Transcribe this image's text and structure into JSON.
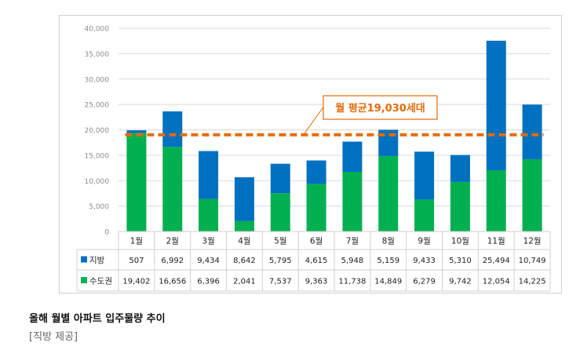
{
  "chart_data": {
    "type": "bar",
    "stacked": true,
    "categories": [
      "1월",
      "2월",
      "3월",
      "4월",
      "5월",
      "6월",
      "7월",
      "8월",
      "9월",
      "10월",
      "11월",
      "12월"
    ],
    "series": [
      {
        "name": "수도권",
        "color": "#00b050",
        "values": [
          19402,
          16656,
          6396,
          2041,
          7537,
          9363,
          11738,
          14849,
          6279,
          9742,
          12054,
          14225
        ],
        "labels": [
          "19,402",
          "16,656",
          "6,396",
          "2,041",
          "7,537",
          "9,363",
          "11,738",
          "14,849",
          "6,279",
          "9,742",
          "12,054",
          "14,225"
        ]
      },
      {
        "name": "지방",
        "color": "#0070c0",
        "values": [
          507,
          6992,
          9434,
          8642,
          5795,
          4615,
          5948,
          5159,
          9433,
          5310,
          25494,
          10749
        ],
        "labels": [
          "507",
          "6,992",
          "9,434",
          "8,642",
          "5,795",
          "4,615",
          "5,948",
          "5,159",
          "9,433",
          "5,310",
          "25,494",
          "10,749"
        ]
      }
    ],
    "ylim": [
      0,
      40000
    ],
    "yticks": [
      0,
      5000,
      10000,
      15000,
      20000,
      25000,
      30000,
      35000,
      40000
    ],
    "ytick_labels": [
      "0",
      "5,000",
      "10,000",
      "15,000",
      "20,000",
      "25,000",
      "30,000",
      "35,000",
      "40,000"
    ],
    "average_line": {
      "value": 19030,
      "label": "월 평균19,030세대",
      "color": "#e36c0a"
    },
    "grid": true,
    "legend": "data-table"
  },
  "caption": {
    "title": "올해 월별 아파트 입주물량 추이",
    "source": "[직방 제공]"
  }
}
